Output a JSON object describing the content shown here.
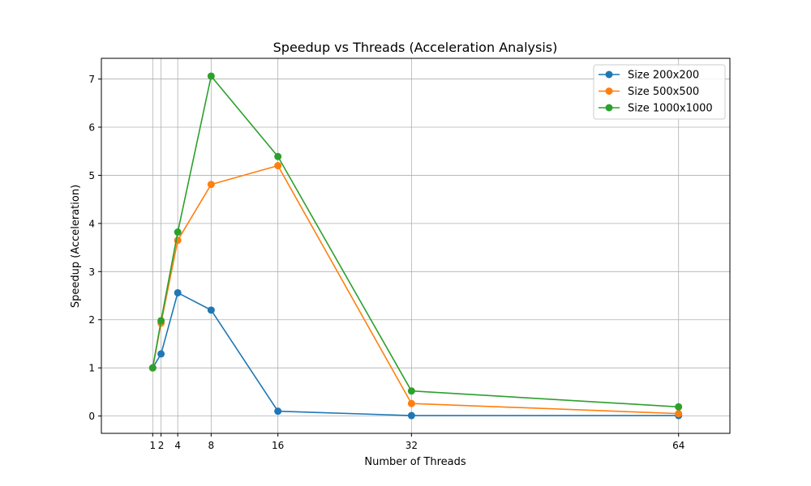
{
  "chart_data": {
    "type": "line",
    "title": "Speedup vs Threads (Acceleration Analysis)",
    "xlabel": "Number of Threads",
    "ylabel": "Speedup (Acceleration)",
    "x": [
      1,
      2,
      4,
      8,
      16,
      32,
      64
    ],
    "x_ticks": [
      1,
      2,
      4,
      8,
      16,
      32,
      64
    ],
    "y_ticks": [
      0,
      1,
      2,
      3,
      4,
      5,
      6,
      7
    ],
    "xlim": [
      -5.15,
      70.15
    ],
    "ylim": [
      -0.36,
      7.43
    ],
    "grid": true,
    "legend_position": "top-right",
    "series": [
      {
        "name": "Size 200x200",
        "color": "#1f77b4",
        "values": [
          1.0,
          1.29,
          2.56,
          2.2,
          0.1,
          0.01,
          0.01
        ]
      },
      {
        "name": "Size 500x500",
        "color": "#ff7f0e",
        "values": [
          1.0,
          1.93,
          3.65,
          4.81,
          5.2,
          0.26,
          0.05
        ]
      },
      {
        "name": "Size 1000x1000",
        "color": "#2ca02c",
        "values": [
          1.0,
          1.98,
          3.82,
          7.06,
          5.39,
          0.52,
          0.19
        ]
      }
    ]
  }
}
